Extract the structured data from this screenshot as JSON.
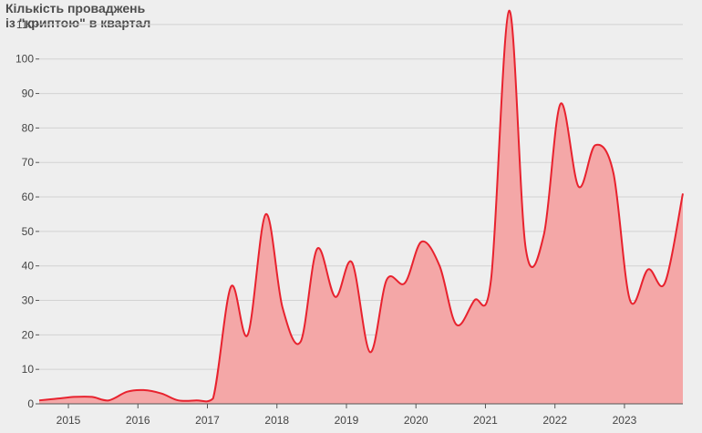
{
  "chart_data": {
    "type": "area",
    "title_lines": [
      "Кількість проваджень",
      "із \"криптою\" в квартал"
    ],
    "xlabel": "",
    "ylabel": "",
    "ylim": [
      0,
      115
    ],
    "xlim": [
      2014.62,
      2023.88
    ],
    "y_ticks": [
      0,
      10,
      20,
      30,
      40,
      50,
      60,
      70,
      80,
      90,
      100,
      110
    ],
    "x_ticks": [
      "2015",
      "2016",
      "2017",
      "2018",
      "2019",
      "2020",
      "2021",
      "2022",
      "2023"
    ],
    "grid": "horizontal",
    "colors": {
      "line": "#e8222e",
      "fill": "#f4a7a7",
      "grid": "#d2d2d2",
      "axis": "#555555"
    },
    "series": [
      {
        "x": [
          2014.62,
          2014.88,
          2015.12,
          2015.38,
          2015.62,
          2015.88,
          2016.12,
          2016.38,
          2016.62,
          2016.88,
          2017.12,
          2017.38,
          2017.62,
          2017.88,
          2018.12,
          2018.38,
          2018.62,
          2018.88,
          2019.12,
          2019.38,
          2019.62,
          2019.88,
          2020.12,
          2020.38,
          2020.62,
          2020.88,
          2021.12,
          2021.38,
          2021.62,
          2021.88,
          2022.12,
          2022.38,
          2022.62,
          2022.88,
          2023.12,
          2023.38,
          2023.62,
          2023.88
        ],
        "values": [
          1,
          1.5,
          2,
          2,
          1,
          3.5,
          4,
          3,
          1,
          1,
          1.5,
          34,
          20,
          55,
          28,
          18,
          45,
          31,
          41,
          15,
          36,
          35,
          47,
          40,
          23,
          30,
          36,
          114,
          45,
          49,
          87,
          63,
          75,
          67,
          30,
          39,
          35,
          61
        ]
      }
    ]
  }
}
